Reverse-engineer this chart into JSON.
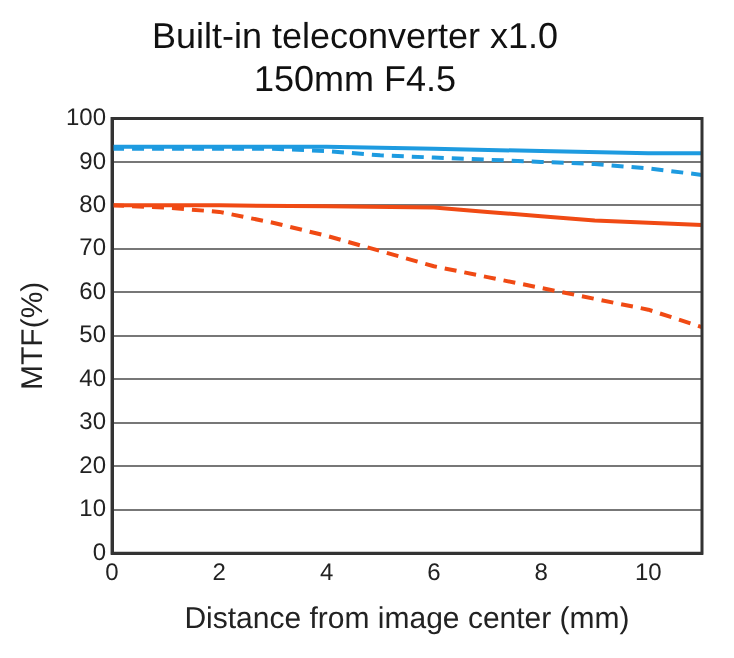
{
  "chart_data": {
    "type": "line",
    "title": "Built-in teleconverter x1.0",
    "subtitle": "150mm F4.5",
    "xlabel": "Distance from image center (mm)",
    "ylabel": "MTF(%)",
    "xlim": [
      0,
      11
    ],
    "xticks": [
      0,
      2,
      4,
      6,
      8,
      10
    ],
    "ylim": [
      0,
      100
    ],
    "yticks": [
      0,
      10,
      20,
      30,
      40,
      50,
      60,
      70,
      80,
      90,
      100
    ],
    "grid": "y",
    "marker": "none",
    "legend": false,
    "series": [
      {
        "color": "#1e9be0",
        "line_style": "solid",
        "x": [
          0,
          2,
          4,
          6,
          8,
          10,
          11
        ],
        "values": [
          93.5,
          93.5,
          93.5,
          93,
          92.5,
          92,
          92
        ]
      },
      {
        "color": "#1e9be0",
        "line_style": "dashed",
        "x": [
          0,
          2,
          3,
          4,
          5,
          6,
          7,
          8,
          9,
          10,
          11
        ],
        "values": [
          93,
          93,
          93,
          92.5,
          91.5,
          91,
          90.5,
          90,
          89.5,
          88.5,
          87
        ]
      },
      {
        "color": "#f04a14",
        "line_style": "solid",
        "x": [
          0,
          2,
          4,
          6,
          7,
          8,
          9,
          10,
          11
        ],
        "values": [
          80,
          80,
          79.8,
          79.5,
          78.5,
          77.5,
          76.5,
          76,
          75.5
        ]
      },
      {
        "color": "#f04a14",
        "line_style": "dashed",
        "x": [
          0,
          1,
          2,
          3,
          4,
          5,
          6,
          7,
          8,
          9,
          10,
          11
        ],
        "values": [
          80,
          79.5,
          78.5,
          76,
          73,
          69.5,
          66,
          63.5,
          61,
          58.5,
          56,
          52
        ]
      }
    ]
  }
}
